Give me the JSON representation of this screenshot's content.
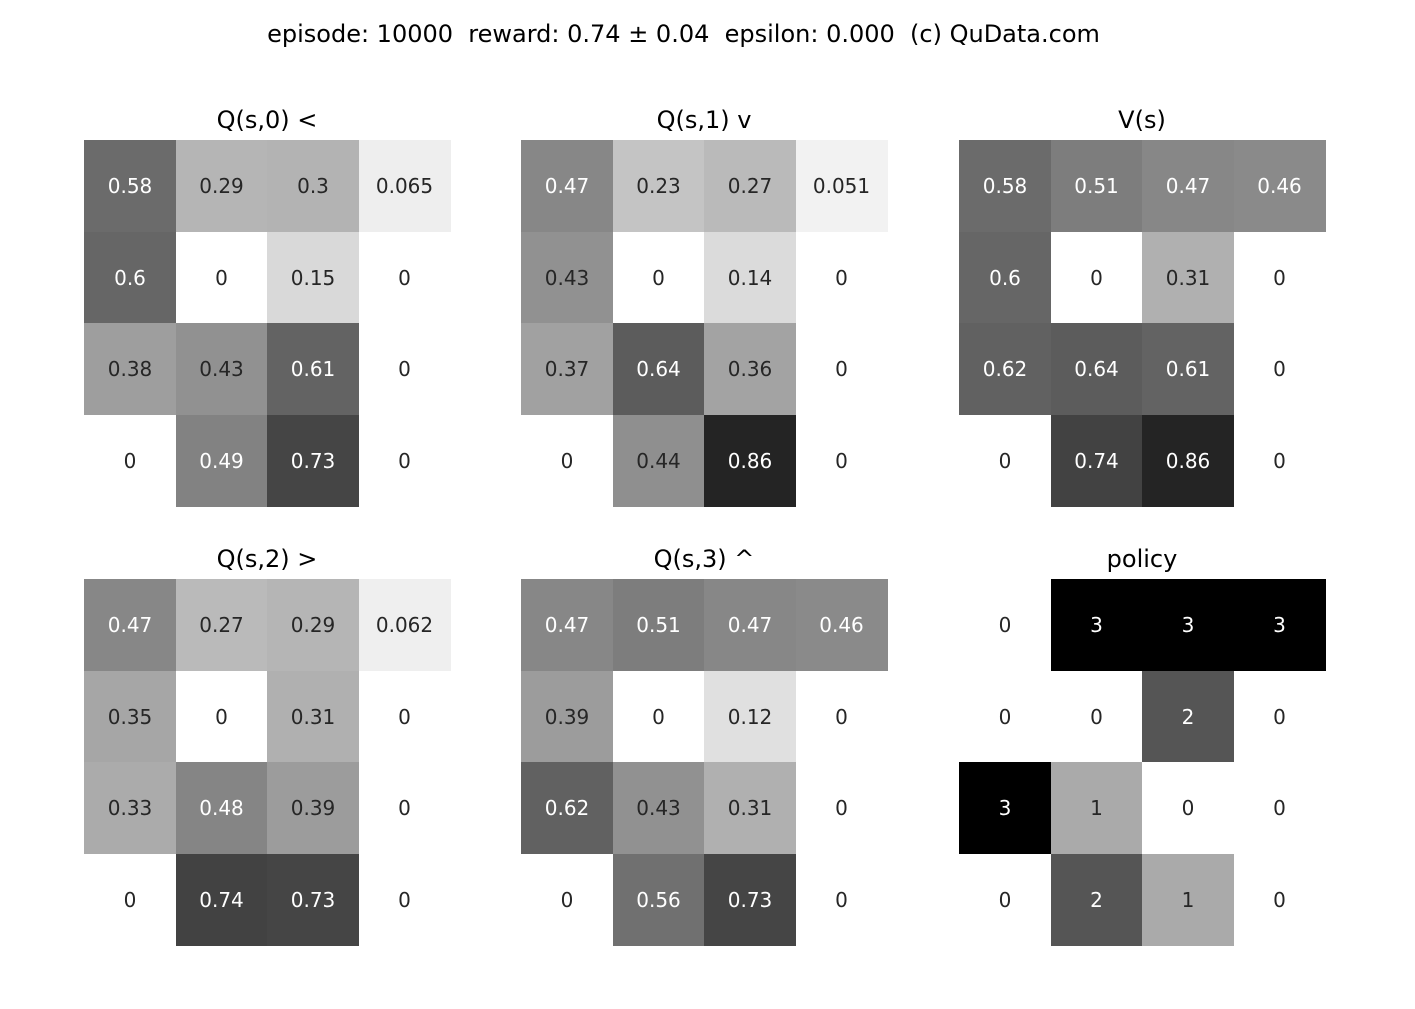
{
  "suptitle": "episode: 10000  reward: 0.74 ± 0.04  epsilon: 0.000  (c) QuData.com",
  "chart_data": [
    {
      "type": "heatmap",
      "title": "Q(s,0) <",
      "colormap": "gray_r",
      "vmin": 0,
      "vmax": 1,
      "labels": [
        [
          "0.58",
          "0.29",
          "0.3",
          "0.065"
        ],
        [
          "0.6",
          "0",
          "0.15",
          "0"
        ],
        [
          "0.38",
          "0.43",
          "0.61",
          "0"
        ],
        [
          "0",
          "0.49",
          "0.73",
          "0"
        ]
      ],
      "values": [
        [
          0.58,
          0.29,
          0.3,
          0.065
        ],
        [
          0.6,
          0,
          0.15,
          0
        ],
        [
          0.38,
          0.43,
          0.61,
          0
        ],
        [
          0,
          0.49,
          0.73,
          0
        ]
      ]
    },
    {
      "type": "heatmap",
      "title": "Q(s,1) v",
      "colormap": "gray_r",
      "vmin": 0,
      "vmax": 1,
      "labels": [
        [
          "0.47",
          "0.23",
          "0.27",
          "0.051"
        ],
        [
          "0.43",
          "0",
          "0.14",
          "0"
        ],
        [
          "0.37",
          "0.64",
          "0.36",
          "0"
        ],
        [
          "0",
          "0.44",
          "0.86",
          "0"
        ]
      ],
      "values": [
        [
          0.47,
          0.23,
          0.27,
          0.051
        ],
        [
          0.43,
          0,
          0.14,
          0
        ],
        [
          0.37,
          0.64,
          0.36,
          0
        ],
        [
          0,
          0.44,
          0.86,
          0
        ]
      ]
    },
    {
      "type": "heatmap",
      "title": "V(s)",
      "colormap": "gray_r",
      "vmin": 0,
      "vmax": 1,
      "labels": [
        [
          "0.58",
          "0.51",
          "0.47",
          "0.46"
        ],
        [
          "0.6",
          "0",
          "0.31",
          "0"
        ],
        [
          "0.62",
          "0.64",
          "0.61",
          "0"
        ],
        [
          "0",
          "0.74",
          "0.86",
          "0"
        ]
      ],
      "values": [
        [
          0.58,
          0.51,
          0.47,
          0.46
        ],
        [
          0.6,
          0,
          0.31,
          0
        ],
        [
          0.62,
          0.64,
          0.61,
          0
        ],
        [
          0,
          0.74,
          0.86,
          0
        ]
      ]
    },
    {
      "type": "heatmap",
      "title": "Q(s,2) >",
      "colormap": "gray_r",
      "vmin": 0,
      "vmax": 1,
      "labels": [
        [
          "0.47",
          "0.27",
          "0.29",
          "0.062"
        ],
        [
          "0.35",
          "0",
          "0.31",
          "0"
        ],
        [
          "0.33",
          "0.48",
          "0.39",
          "0"
        ],
        [
          "0",
          "0.74",
          "0.73",
          "0"
        ]
      ],
      "values": [
        [
          0.47,
          0.27,
          0.29,
          0.062
        ],
        [
          0.35,
          0,
          0.31,
          0
        ],
        [
          0.33,
          0.48,
          0.39,
          0
        ],
        [
          0,
          0.74,
          0.73,
          0
        ]
      ]
    },
    {
      "type": "heatmap",
      "title": "Q(s,3) ^",
      "colormap": "gray_r",
      "vmin": 0,
      "vmax": 1,
      "labels": [
        [
          "0.47",
          "0.51",
          "0.47",
          "0.46"
        ],
        [
          "0.39",
          "0",
          "0.12",
          "0"
        ],
        [
          "0.62",
          "0.43",
          "0.31",
          "0"
        ],
        [
          "0",
          "0.56",
          "0.73",
          "0"
        ]
      ],
      "values": [
        [
          0.47,
          0.51,
          0.47,
          0.46
        ],
        [
          0.39,
          0,
          0.12,
          0
        ],
        [
          0.62,
          0.43,
          0.31,
          0
        ],
        [
          0,
          0.56,
          0.73,
          0
        ]
      ]
    },
    {
      "type": "heatmap",
      "title": "policy",
      "colormap": "gray_r",
      "vmin": 0,
      "vmax": 3,
      "labels": [
        [
          "0",
          "3",
          "3",
          "3"
        ],
        [
          "0",
          "0",
          "2",
          "0"
        ],
        [
          "3",
          "1",
          "0",
          "0"
        ],
        [
          "0",
          "2",
          "1",
          "0"
        ]
      ],
      "values": [
        [
          0,
          3,
          3,
          3
        ],
        [
          0,
          0,
          2,
          0
        ],
        [
          3,
          1,
          0,
          0
        ],
        [
          0,
          2,
          1,
          0
        ]
      ]
    }
  ]
}
